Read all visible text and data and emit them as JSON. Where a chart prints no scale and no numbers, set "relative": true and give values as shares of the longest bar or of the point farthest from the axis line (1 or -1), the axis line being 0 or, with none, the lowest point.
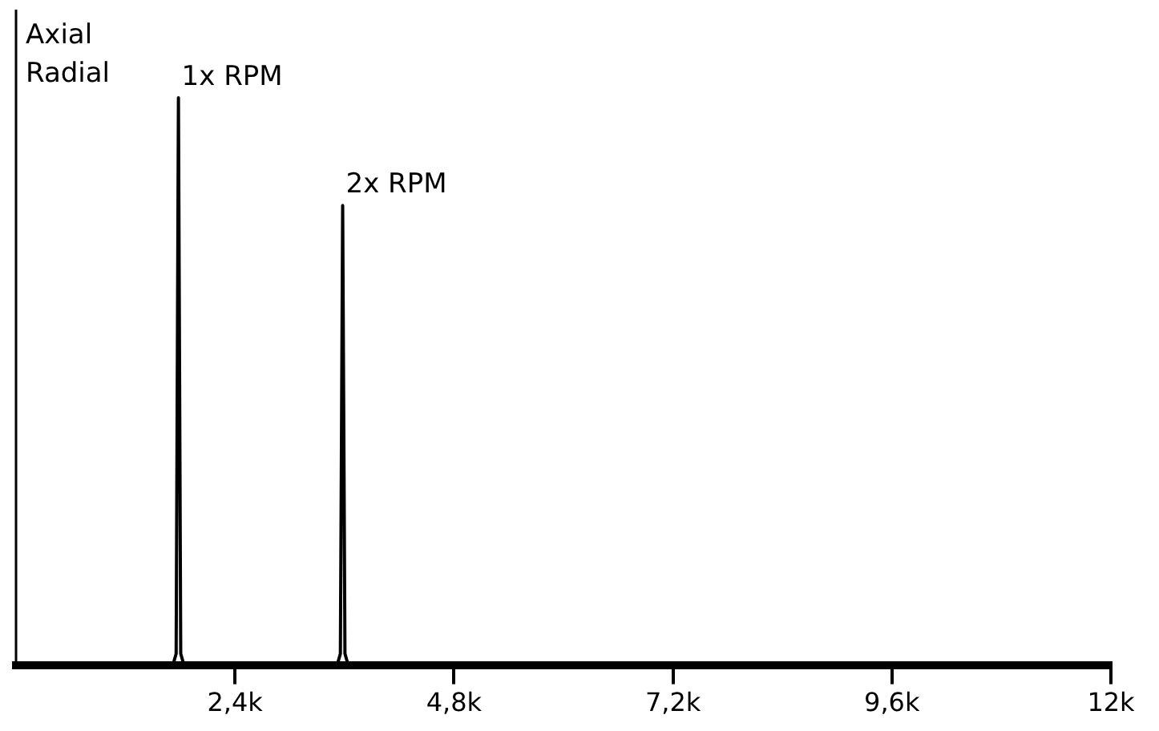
{
  "chart_data": {
    "type": "line",
    "relative": true,
    "x": [
      0,
      1720,
      1755,
      1780,
      1805,
      1840,
      3520,
      3555,
      3580,
      3605,
      3640,
      12000
    ],
    "series": [
      {
        "color": "#000000",
        "values": [
          0,
          0,
          0.02,
          1,
          0.02,
          0,
          0,
          0.02,
          0.81,
          0.02,
          0,
          0
        ]
      }
    ],
    "xlim": [
      0,
      12000
    ],
    "xticks": [
      {
        "value": 2400,
        "label": "2,4k"
      },
      {
        "value": 4800,
        "label": "4,8k"
      },
      {
        "value": 7200,
        "label": "7,2k"
      },
      {
        "value": 9600,
        "label": "9,6k"
      },
      {
        "value": 12000,
        "label": "12k"
      }
    ],
    "annotations": [
      "Axial",
      "Radial",
      {
        "text": "1x RPM",
        "x": 1780,
        "y": 1
      },
      {
        "text": "2x RPM",
        "x": 3580,
        "y": 0.81
      }
    ],
    "grid": false,
    "legend": false,
    "marker": "none",
    "line_style": "solid"
  }
}
